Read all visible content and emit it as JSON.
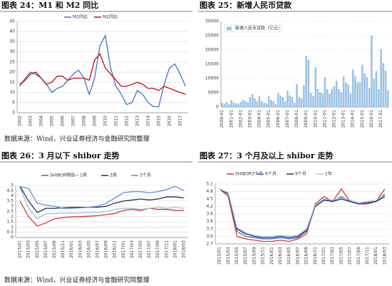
{
  "chart_data": [
    {
      "type": "line",
      "title": "图表 24：M1 和 M2 同比",
      "categories": [
        "2002",
        null,
        "2003",
        null,
        "2004",
        null,
        "2005",
        null,
        "2006",
        null,
        "2007",
        null,
        "2008",
        null,
        "2009",
        null,
        "2010",
        null,
        "2011",
        null,
        "2012",
        null,
        "2013",
        null,
        "2014",
        null,
        "2015",
        null,
        "2016",
        null,
        "2017",
        null
      ],
      "series": [
        {
          "name": "M1同比",
          "color": "#4472c4",
          "values": [
            13,
            17,
            20,
            19,
            17,
            14,
            10,
            12,
            13,
            16,
            19,
            21,
            17,
            9,
            17,
            33,
            38,
            22,
            13,
            9,
            4,
            5,
            11,
            9,
            5,
            3,
            3,
            14,
            22,
            24,
            19,
            13
          ]
        },
        {
          "name": "M2同比",
          "color": "#d0021b",
          "values": [
            14,
            16,
            19,
            20,
            17,
            14,
            15,
            18,
            18,
            16,
            17,
            17,
            17,
            16,
            26,
            29,
            22,
            19,
            16,
            13,
            13,
            14,
            15,
            14,
            12,
            12,
            11,
            13,
            12,
            11,
            10,
            9
          ]
        }
      ],
      "ylim": [
        0,
        45
      ],
      "yticks": [
        0,
        5,
        10,
        15,
        20,
        25,
        30,
        35,
        40,
        45
      ],
      "grid": true
    },
    {
      "type": "bar",
      "title": "图表 25：新增人民币贷款",
      "categories": [
        "2000-01",
        null,
        null,
        null,
        "2001-01",
        null,
        null,
        null,
        "2002-01",
        null,
        null,
        null,
        "2003-01",
        null,
        null,
        null,
        "2004-01",
        null,
        null,
        null,
        "2005-01",
        null,
        null,
        null,
        "2006-01",
        null,
        null,
        null,
        "2007-01",
        null,
        null,
        null,
        "2008-01",
        null,
        null,
        null,
        "2009-01",
        null,
        null,
        null,
        "2010-01",
        null,
        null,
        null,
        "2011-01",
        null,
        null,
        null,
        "2012-01",
        null,
        null,
        null,
        "2013-01",
        null,
        null,
        null,
        "2014-01",
        null,
        null,
        null,
        "2015-01",
        null,
        null,
        null,
        "2016-01",
        null,
        null,
        null,
        "2017-01",
        null,
        null,
        null
      ],
      "series": [
        {
          "name": "新增人民币贷款（亿元）",
          "color": "#9dc3e6",
          "values": [
            1500,
            1200,
            1800,
            1000,
            2500,
            1500,
            1300,
            1100,
            1800,
            2500,
            2000,
            1600,
            3500,
            4500,
            3000,
            2000,
            3800,
            2000,
            1500,
            1200,
            3800,
            2500,
            2000,
            1000,
            5000,
            4000,
            3500,
            2000,
            5700,
            4000,
            3500,
            1500,
            8000,
            3500,
            3000,
            7500,
            18000,
            16500,
            5000,
            3800,
            13900,
            6300,
            5200,
            4800,
            10400,
            6300,
            4700,
            6400,
            7400,
            9200,
            6200,
            5200,
            10700,
            8600,
            7900,
            4800,
            13200,
            10800,
            8600,
            8800,
            14700,
            11800,
            10500,
            6700,
            25100,
            9900,
            12600,
            6300,
            20300,
            15400,
            12700,
            5800
          ]
        }
      ],
      "ylim": [
        0,
        30000
      ],
      "yticks": [
        0,
        5000,
        10000,
        15000,
        20000,
        25000,
        30000
      ],
      "grid": true
    },
    {
      "type": "line",
      "title": "图表 26：3 月以下 shibor 走势",
      "categories": [
        "2015/01",
        "2015/03",
        "2015/05",
        "2015/07",
        "2015/09",
        "2015/11",
        "2016/01",
        "2016/03",
        "2016/05",
        "2016/07",
        "2016/09",
        "2016/11",
        "2017/01",
        "2017/03",
        "2017/05",
        "2017/07",
        "2017/09",
        "2017/11",
        "2018/01",
        "2018/03"
      ],
      "series": [
        {
          "name": "SHIBOR隔夜",
          "color": "#e03030",
          "values": [
            3.5,
            2.0,
            1.1,
            1.4,
            1.8,
            1.9,
            2.0,
            2.0,
            2.05,
            2.1,
            2.2,
            2.3,
            2.6,
            2.7,
            2.6,
            2.8,
            2.7,
            2.7,
            2.6,
            2.6
          ]
        },
        {
          "name": "1周",
          "color": "#9dc3e6",
          "values": [
            4.8,
            2.8,
            1.8,
            2.3,
            2.3,
            2.35,
            2.35,
            2.35,
            2.4,
            2.4,
            2.5,
            2.7,
            2.8,
            2.8,
            2.7,
            2.8,
            2.9,
            2.8,
            2.9,
            2.8
          ]
        },
        {
          "name": "2周",
          "color": "#1f2f6b",
          "values": [
            4.9,
            3.5,
            2.4,
            2.8,
            2.8,
            2.85,
            2.9,
            2.9,
            2.9,
            2.9,
            3.0,
            3.3,
            3.5,
            3.6,
            3.7,
            3.6,
            3.7,
            3.9,
            3.9,
            3.8
          ]
        },
        {
          "name": "3个月",
          "color": "#5b8fd6",
          "values": [
            4.9,
            4.7,
            3.3,
            3.1,
            3.0,
            2.8,
            2.8,
            2.85,
            2.9,
            3.0,
            3.3,
            3.8,
            4.3,
            4.4,
            4.4,
            4.3,
            4.4,
            4.6,
            4.9,
            4.5
          ]
        }
      ],
      "ylim": [
        0,
        5
      ],
      "yticks": [
        0,
        0.5,
        1,
        1.5,
        2,
        2.5,
        3,
        3.5,
        4,
        4.5,
        5
      ],
      "grid": true
    },
    {
      "type": "line",
      "title": "图表 27：3 个月及以上 shibor 走势",
      "categories": [
        "2015/01",
        "2015/03",
        "2015/05",
        "2015/07",
        "2015/09",
        "2015/11",
        "2016/01",
        "2016/03",
        "2016/05",
        "2016/07",
        "2016/09",
        "2016/11",
        "2017/01",
        "2017/03",
        "2017/05",
        "2017/07",
        "2017/09",
        "2017/11",
        "2018/01",
        "2018/03"
      ],
      "series": [
        {
          "name": "SHIBOR3个月",
          "color": "#e03030",
          "values": [
            4.9,
            4.6,
            3.0,
            2.9,
            2.85,
            2.8,
            2.8,
            2.85,
            2.8,
            2.9,
            3.1,
            4.3,
            4.6,
            4.4,
            4.9,
            4.4,
            4.3,
            4.3,
            4.4,
            4.9
          ]
        },
        {
          "name": "6个月",
          "color": "#4472c4",
          "values": [
            4.9,
            4.7,
            3.2,
            3.0,
            2.95,
            2.9,
            2.9,
            2.95,
            2.9,
            2.95,
            3.2,
            4.2,
            4.5,
            4.4,
            4.6,
            4.4,
            4.3,
            4.35,
            4.4,
            4.7
          ]
        },
        {
          "name": "9个月",
          "color": "#1f2f6b",
          "values": [
            4.9,
            4.7,
            3.3,
            3.1,
            3.0,
            2.95,
            2.95,
            3.0,
            2.95,
            3.0,
            3.25,
            4.2,
            4.45,
            4.4,
            4.5,
            4.4,
            4.3,
            4.35,
            4.4,
            4.6
          ]
        },
        {
          "name": "1年",
          "color": "#9dc3e6",
          "values": [
            4.9,
            4.75,
            3.35,
            3.15,
            3.05,
            3.0,
            3.0,
            3.05,
            3.0,
            3.05,
            3.3,
            4.25,
            4.5,
            4.45,
            4.55,
            4.45,
            4.35,
            4.4,
            4.45,
            4.65
          ]
        }
      ],
      "ylim": [
        2.7,
        5.1
      ],
      "yticks": [
        2.7,
        {
          "value": 3,
          "label": "3.0"
        },
        3.3,
        3.6,
        3.9,
        4.2,
        4.5,
        4.8,
        5.1
      ],
      "grid": true
    }
  ],
  "sources": [
    "数据来源：Wind，兴业证券经济与金融研究院整理",
    "数据来源：Wind，兴业证券经济与金融研究院整理"
  ]
}
